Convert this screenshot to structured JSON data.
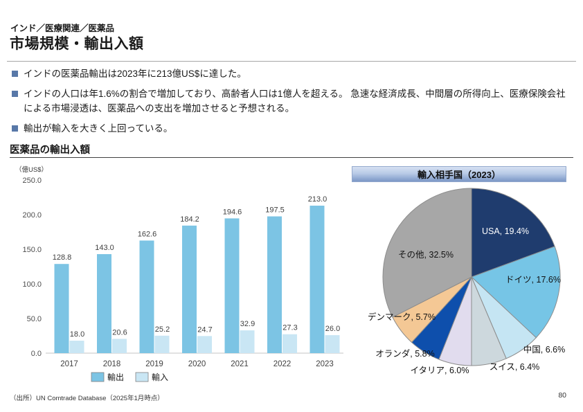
{
  "page": {
    "eyebrow": "インド／医療関連／医薬品",
    "title": "市場規模・輸出入額",
    "bullets": [
      "インドの医薬品輸出は2023年に213億US$に達した。",
      "インドの人口は年1.6%の割合で増加しており、高齢者人口は1億人を超える。 急速な経済成長、中間層の所得向上、医療保険会社による市場浸透は、医薬品への支出を増加させると予想される。",
      "輸出が輸入を大きく上回っている。"
    ],
    "section_title": "医薬品の輸出入額",
    "source": "（出所）UN Comtrade Database（2025年1月時点）",
    "page_number": "80"
  },
  "colors": {
    "export_bar": "#7cc4e4",
    "import_bar": "#c9e6f4",
    "bullet_square": "#5878a8",
    "pie_stroke": "#8c8c8c",
    "axis_text": "#4d4d4d"
  },
  "chart_data": [
    {
      "type": "bar",
      "title": "医薬品の輸出入額",
      "unit_label": "（億US$）",
      "categories": [
        "2017",
        "2018",
        "2019",
        "2020",
        "2021",
        "2022",
        "2023"
      ],
      "series": [
        {
          "name": "輸出",
          "color": "#7cc4e4",
          "values": [
            128.8,
            143.0,
            162.6,
            184.2,
            194.6,
            197.5,
            213.0
          ]
        },
        {
          "name": "輸入",
          "color": "#c9e6f4",
          "values": [
            18.0,
            20.6,
            25.2,
            24.7,
            32.9,
            27.3,
            26.0
          ]
        }
      ],
      "ylabel": "",
      "xlabel": "",
      "ylim": [
        0,
        250
      ],
      "yticks": [
        0,
        50,
        100,
        150,
        200,
        250
      ],
      "grid": false,
      "legend_position": "bottom",
      "data_labels": true
    },
    {
      "type": "pie",
      "title": "輸入相手国（2023）",
      "label_format": "{label}, {value}%",
      "slices": [
        {
          "label": "USA",
          "value": 19.4,
          "color": "#1f3c6e",
          "text_color": "#ffffff"
        },
        {
          "label": "ドイツ",
          "value": 17.6,
          "color": "#76c5e6"
        },
        {
          "label": "中国",
          "value": 6.6,
          "color": "#c5e5f3"
        },
        {
          "label": "スイス",
          "value": 6.4,
          "color": "#cdd8dd"
        },
        {
          "label": "イタリア",
          "value": 6.0,
          "color": "#e1dcee"
        },
        {
          "label": "オランダ",
          "value": 5.8,
          "color": "#0e4fac"
        },
        {
          "label": "デンマーク",
          "value": 5.7,
          "color": "#f4c895"
        },
        {
          "label": "その他",
          "value": 32.5,
          "color": "#a7a7a7"
        }
      ]
    }
  ]
}
